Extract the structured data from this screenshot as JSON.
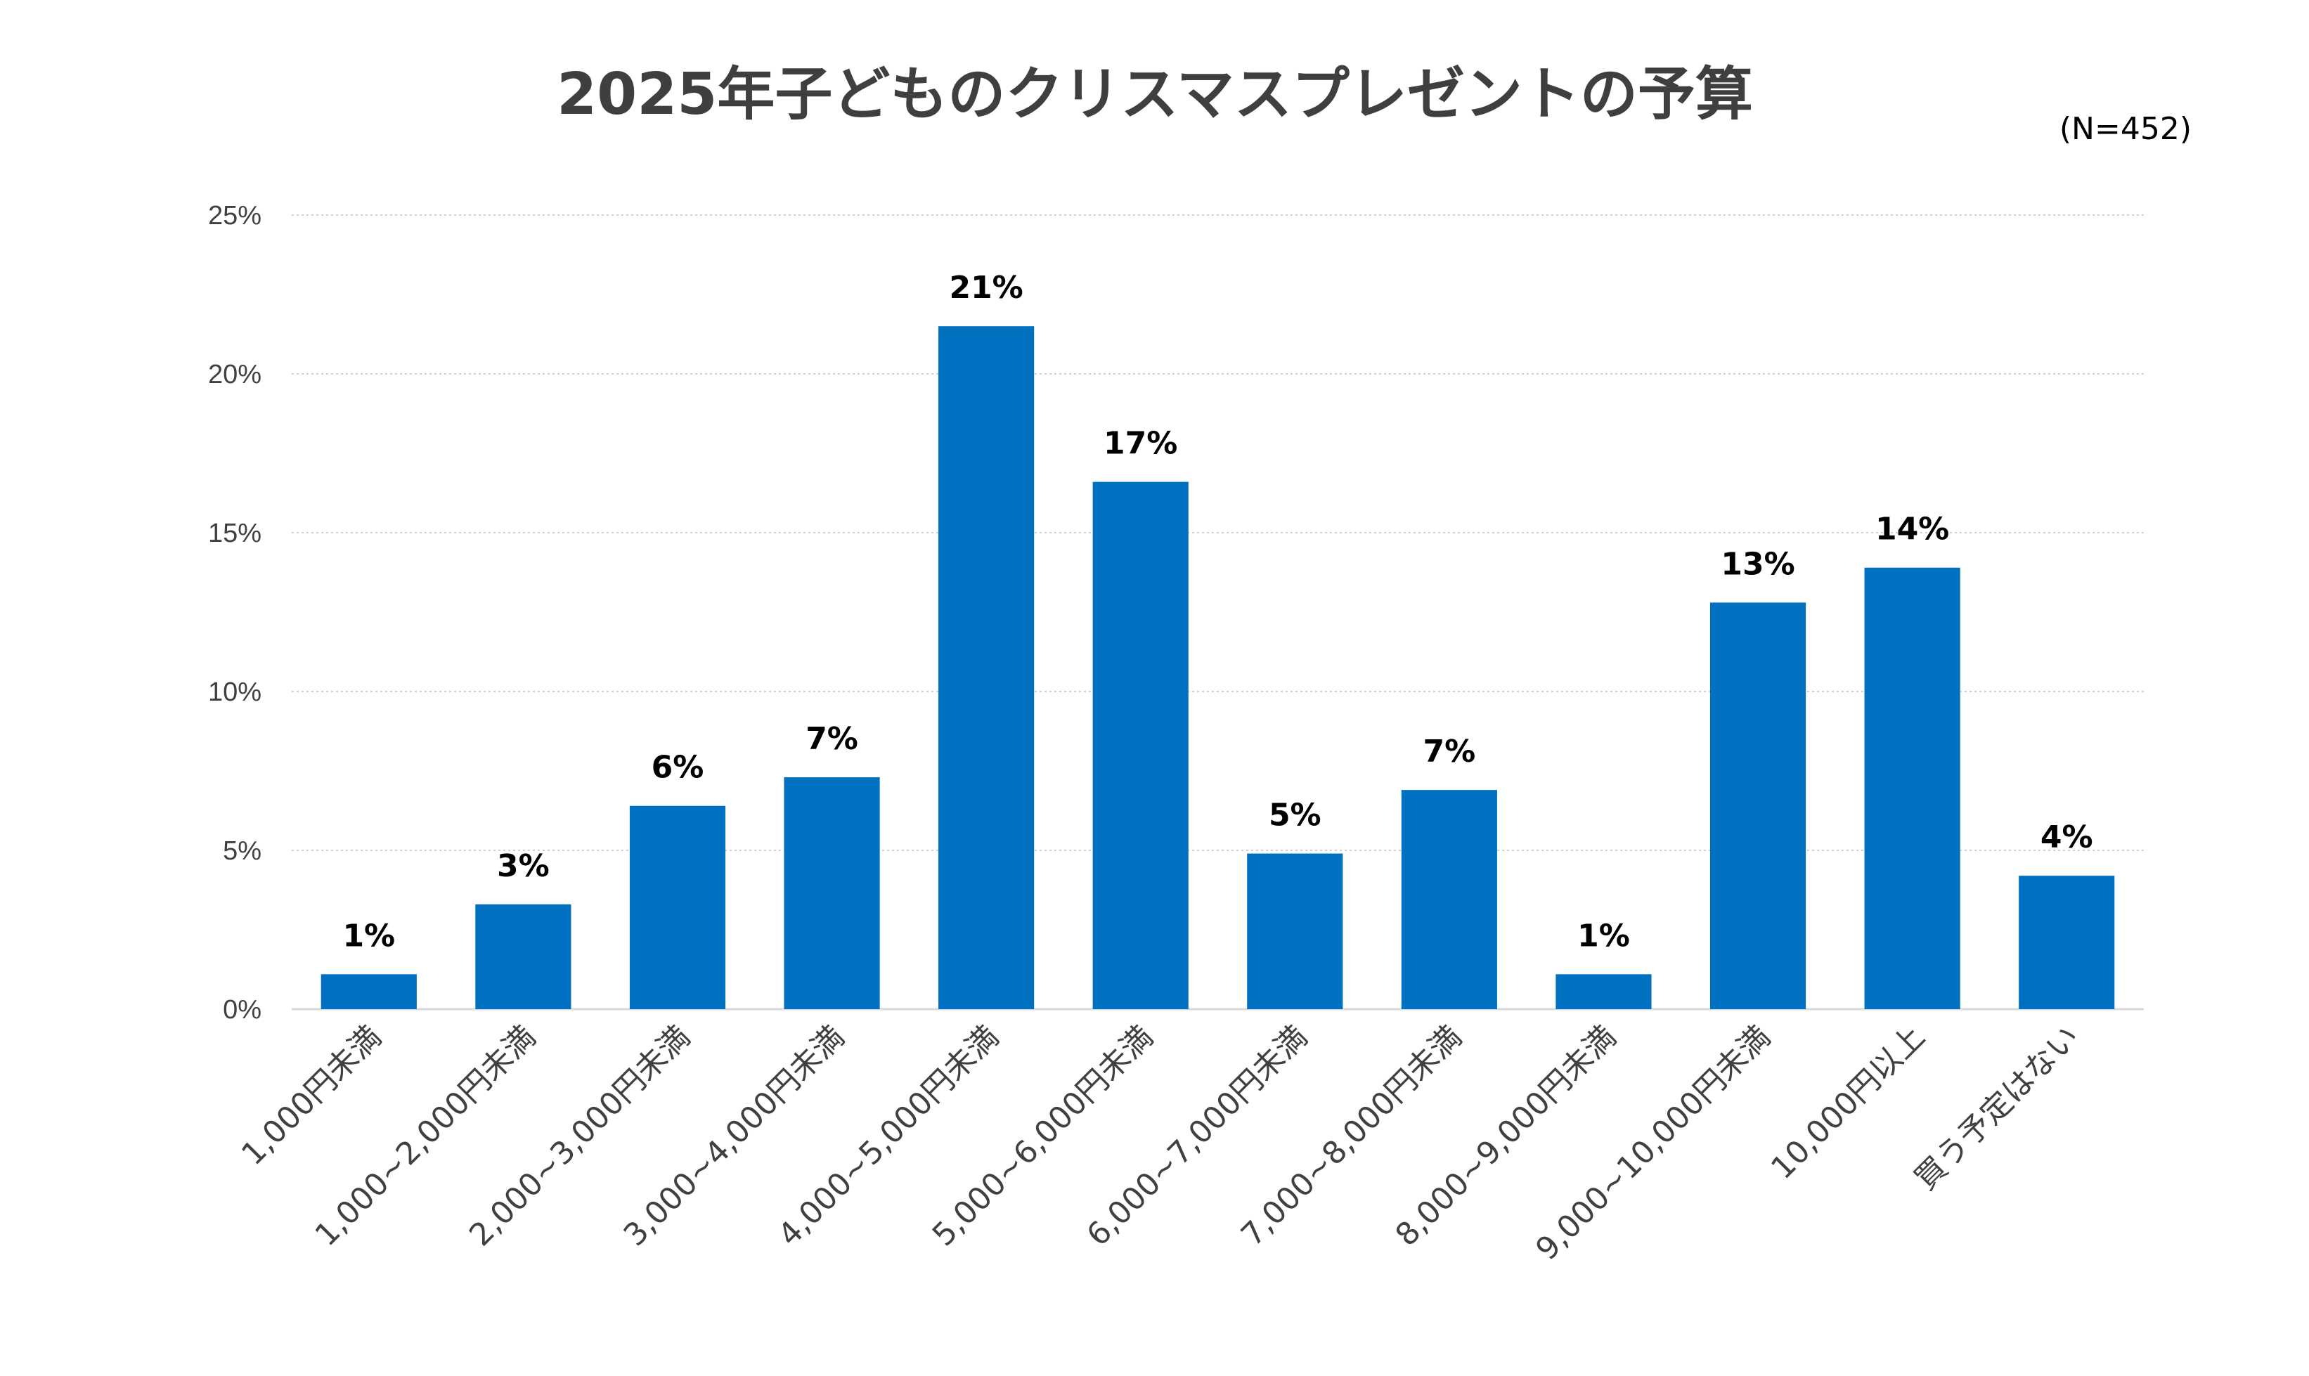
{
  "chart_data": {
    "type": "bar",
    "title": "2025年子どものクリスマスプレゼントの予算",
    "sample_size_label": "(N=452)",
    "categories": [
      "1,000円未満",
      "1,000~2,000円未満",
      "2,000~3,000円未満",
      "3,000~4,000円未満",
      "4,000~5,000円未満",
      "5,000~6,000円未満",
      "6,000~7,000円未満",
      "7,000~8,000円未満",
      "8,000~9,000円未満",
      "9,000~10,000円未満",
      "10,000円以上",
      "買う予定はない"
    ],
    "values": [
      1.1,
      3.3,
      6.4,
      7.3,
      21.5,
      16.6,
      4.9,
      6.9,
      1.1,
      12.8,
      13.9,
      4.2
    ],
    "data_labels": [
      "1%",
      "3%",
      "6%",
      "7%",
      "21%",
      "17%",
      "5%",
      "7%",
      "1%",
      "13%",
      "14%",
      "4%"
    ],
    "xlabel": "",
    "ylabel": "",
    "ylim": [
      0,
      25
    ],
    "yticks": [
      0,
      5,
      10,
      15,
      20,
      25
    ],
    "ytick_labels": [
      "0%",
      "5%",
      "10%",
      "15%",
      "20%",
      "25%"
    ],
    "grid": true,
    "legend": "none",
    "colors": {
      "bar": "#0070c0",
      "grid": "#d0d0d0",
      "axis": "#d9d9d9",
      "title": "#3f3f3f",
      "tick_text": "#404040",
      "data_label": "#000000"
    }
  }
}
